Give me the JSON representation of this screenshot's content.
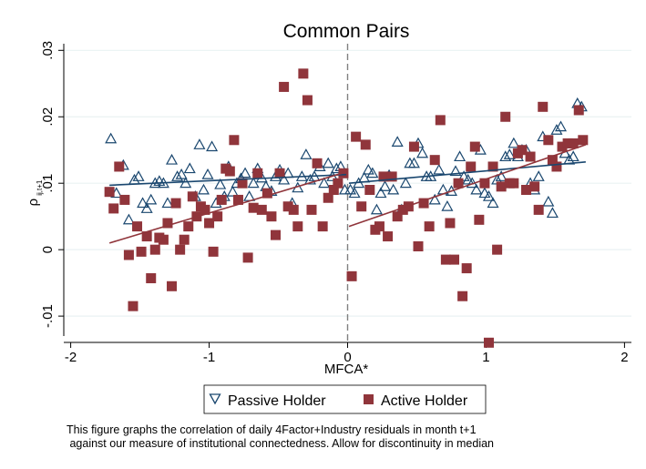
{
  "chart_data": {
    "type": "scatter",
    "title": "Common Pairs",
    "xlabel": "MFCA*",
    "ylabel_main": "ρ",
    "ylabel_sub": "ij,t+1",
    "xlim": [
      -2.05,
      2.05
    ],
    "ylim": [
      -0.013,
      0.031
    ],
    "xticks": [
      -2,
      -1,
      0,
      1,
      2
    ],
    "xtick_labels": [
      "-2",
      "-1",
      "0",
      "1",
      "2"
    ],
    "yticks": [
      -0.01,
      0,
      0.01,
      0.02,
      0.03
    ],
    "ytick_labels": [
      "-.01",
      "0",
      ".01",
      ".02",
      ".03"
    ],
    "grid": "horizontal",
    "discontinuity_at": 0,
    "legend_position": "bottom",
    "series": [
      {
        "name": "Passive Holder",
        "marker": "triangle",
        "color": "#1a476f",
        "points": [
          [
            -1.71,
            0.0167
          ],
          [
            -1.67,
            0.0085
          ],
          [
            -1.62,
            0.0127
          ],
          [
            -1.58,
            0.0045
          ],
          [
            -1.54,
            0.0105
          ],
          [
            -1.51,
            0.011
          ],
          [
            -1.48,
            0.007
          ],
          [
            -1.45,
            0.0062
          ],
          [
            -1.42,
            0.0075
          ],
          [
            -1.39,
            0.01
          ],
          [
            -1.36,
            0.0103
          ],
          [
            -1.33,
            0.01
          ],
          [
            -1.3,
            0.007
          ],
          [
            -1.27,
            0.0135
          ],
          [
            -1.23,
            0.011
          ],
          [
            -1.2,
            0.0113
          ],
          [
            -1.17,
            0.01
          ],
          [
            -1.14,
            0.0122
          ],
          [
            -1.1,
            0.008
          ],
          [
            -1.07,
            0.0158
          ],
          [
            -1.04,
            0.009
          ],
          [
            -1.01,
            0.0113
          ],
          [
            -0.98,
            0.0155
          ],
          [
            -0.95,
            0.007
          ],
          [
            -0.92,
            0.0098
          ],
          [
            -0.89,
            0.008
          ],
          [
            -0.86,
            0.0125
          ],
          [
            -0.83,
            0.0087
          ],
          [
            -0.8,
            0.01
          ],
          [
            -0.77,
            0.0107
          ],
          [
            -0.74,
            0.0115
          ],
          [
            -0.71,
            0.008
          ],
          [
            -0.68,
            0.01
          ],
          [
            -0.65,
            0.0122
          ],
          [
            -0.62,
            0.0108
          ],
          [
            -0.59,
            0.0095
          ],
          [
            -0.55,
            0.0088
          ],
          [
            -0.52,
            0.011
          ],
          [
            -0.49,
            0.012
          ],
          [
            -0.46,
            0.0105
          ],
          [
            -0.43,
            0.0115
          ],
          [
            -0.4,
            0.007
          ],
          [
            -0.36,
            0.0093
          ],
          [
            -0.33,
            0.011
          ],
          [
            -0.3,
            0.0143
          ],
          [
            -0.27,
            0.0105
          ],
          [
            -0.24,
            0.011
          ],
          [
            -0.2,
            0.0125
          ],
          [
            -0.17,
            0.01
          ],
          [
            -0.14,
            0.013
          ],
          [
            -0.11,
            0.011
          ],
          [
            -0.08,
            0.0122
          ],
          [
            -0.05,
            0.0125
          ],
          [
            -0.02,
            0.009
          ],
          [
            0.02,
            0.009
          ],
          [
            0.05,
            0.0085
          ],
          [
            0.08,
            0.01
          ],
          [
            0.12,
            0.0108
          ],
          [
            0.15,
            0.012
          ],
          [
            0.18,
            0.0115
          ],
          [
            0.21,
            0.006
          ],
          [
            0.24,
            0.0085
          ],
          [
            0.27,
            0.0095
          ],
          [
            0.3,
            0.0112
          ],
          [
            0.33,
            0.009
          ],
          [
            0.36,
            0.0162
          ],
          [
            0.39,
            0.006
          ],
          [
            0.42,
            0.01
          ],
          [
            0.45,
            0.013
          ],
          [
            0.48,
            0.013
          ],
          [
            0.51,
            0.016
          ],
          [
            0.54,
            0.0145
          ],
          [
            0.57,
            0.011
          ],
          [
            0.6,
            0.011
          ],
          [
            0.63,
            0.0075
          ],
          [
            0.66,
            0.012
          ],
          [
            0.69,
            0.009
          ],
          [
            0.72,
            0.0065
          ],
          [
            0.75,
            0.0088
          ],
          [
            0.78,
            0.0118
          ],
          [
            0.81,
            0.014
          ],
          [
            0.84,
            0.011
          ],
          [
            0.87,
            0.0105
          ],
          [
            0.9,
            0.01
          ],
          [
            0.93,
            0.009
          ],
          [
            0.96,
            0.015
          ],
          [
            0.99,
            0.0085
          ],
          [
            1.02,
            0.008
          ],
          [
            1.05,
            0.007
          ],
          [
            1.08,
            0.0105
          ],
          [
            1.11,
            0.011
          ],
          [
            1.14,
            0.014
          ],
          [
            1.17,
            0.0143
          ],
          [
            1.2,
            0.016
          ],
          [
            1.23,
            0.014
          ],
          [
            1.26,
            0.015
          ],
          [
            1.29,
            0.015
          ],
          [
            1.32,
            0.01
          ],
          [
            1.35,
            0.009
          ],
          [
            1.38,
            0.011
          ],
          [
            1.41,
            0.017
          ],
          [
            1.45,
            0.0072
          ],
          [
            1.48,
            0.0055
          ],
          [
            1.51,
            0.018
          ],
          [
            1.54,
            0.0185
          ],
          [
            1.57,
            0.0145
          ],
          [
            1.6,
            0.0135
          ],
          [
            1.63,
            0.014
          ],
          [
            1.66,
            0.022
          ],
          [
            1.69,
            0.0215
          ]
        ],
        "fits": [
          {
            "x": [
              -1.72,
              -0.01
            ],
            "y": [
              0.0097,
              0.0113
            ]
          },
          {
            "x": [
              0.01,
              1.72
            ],
            "y": [
              0.01,
              0.0132
            ]
          }
        ]
      },
      {
        "name": "Active Holder",
        "marker": "square",
        "color": "#90353b",
        "points": [
          [
            -1.72,
            0.0087
          ],
          [
            -1.69,
            0.0062
          ],
          [
            -1.65,
            0.0125
          ],
          [
            -1.61,
            0.0075
          ],
          [
            -1.58,
            -0.0008
          ],
          [
            -1.55,
            -0.0085
          ],
          [
            -1.52,
            0.0035
          ],
          [
            -1.49,
            -0.0003
          ],
          [
            -1.45,
            0.002
          ],
          [
            -1.42,
            -0.0043
          ],
          [
            -1.39,
            0.0
          ],
          [
            -1.36,
            0.0018
          ],
          [
            -1.33,
            0.0015
          ],
          [
            -1.3,
            0.004
          ],
          [
            -1.27,
            -0.0055
          ],
          [
            -1.24,
            0.007
          ],
          [
            -1.21,
            0.0
          ],
          [
            -1.18,
            0.0015
          ],
          [
            -1.15,
            0.0035
          ],
          [
            -1.12,
            0.008
          ],
          [
            -1.09,
            0.005
          ],
          [
            -1.06,
            0.0065
          ],
          [
            -1.03,
            0.006
          ],
          [
            -1.0,
            0.004
          ],
          [
            -0.97,
            -0.0003
          ],
          [
            -0.94,
            0.005
          ],
          [
            -0.91,
            0.0075
          ],
          [
            -0.88,
            0.0122
          ],
          [
            -0.85,
            0.0118
          ],
          [
            -0.82,
            0.0165
          ],
          [
            -0.79,
            0.0075
          ],
          [
            -0.76,
            0.01
          ],
          [
            -0.72,
            -0.0012
          ],
          [
            -0.68,
            0.0063
          ],
          [
            -0.65,
            0.0115
          ],
          [
            -0.62,
            0.006
          ],
          [
            -0.58,
            0.0085
          ],
          [
            -0.55,
            0.005
          ],
          [
            -0.52,
            0.0022
          ],
          [
            -0.49,
            0.0115
          ],
          [
            -0.46,
            0.0245
          ],
          [
            -0.43,
            0.0065
          ],
          [
            -0.39,
            0.006
          ],
          [
            -0.36,
            0.0035
          ],
          [
            -0.32,
            0.0265
          ],
          [
            -0.29,
            0.0225
          ],
          [
            -0.26,
            0.006
          ],
          [
            -0.22,
            0.013
          ],
          [
            -0.18,
            0.0035
          ],
          [
            -0.14,
            0.0078
          ],
          [
            -0.1,
            0.009
          ],
          [
            -0.07,
            0.01
          ],
          [
            -0.03,
            0.0115
          ],
          [
            0.03,
            -0.004
          ],
          [
            0.06,
            0.017
          ],
          [
            0.1,
            0.0065
          ],
          [
            0.13,
            0.0158
          ],
          [
            0.16,
            0.009
          ],
          [
            0.2,
            0.003
          ],
          [
            0.23,
            0.0035
          ],
          [
            0.26,
            0.011
          ],
          [
            0.29,
            0.002
          ],
          [
            0.32,
            0.011
          ],
          [
            0.36,
            0.005
          ],
          [
            0.4,
            0.006
          ],
          [
            0.44,
            0.0065
          ],
          [
            0.48,
            0.0155
          ],
          [
            0.51,
            0.0005
          ],
          [
            0.55,
            0.007
          ],
          [
            0.59,
            0.0035
          ],
          [
            0.63,
            0.0135
          ],
          [
            0.67,
            0.0195
          ],
          [
            0.71,
            -0.0015
          ],
          [
            0.74,
            0.004
          ],
          [
            0.77,
            -0.0015
          ],
          [
            0.8,
            0.01
          ],
          [
            0.83,
            -0.007
          ],
          [
            0.86,
            -0.0028
          ],
          [
            0.89,
            0.0125
          ],
          [
            0.92,
            0.0155
          ],
          [
            0.95,
            0.0045
          ],
          [
            0.99,
            0.01
          ],
          [
            1.02,
            -0.014
          ],
          [
            1.05,
            0.0125
          ],
          [
            1.08,
            0.0
          ],
          [
            1.11,
            0.0095
          ],
          [
            1.14,
            0.02
          ],
          [
            1.17,
            0.01
          ],
          [
            1.2,
            0.01
          ],
          [
            1.23,
            0.0145
          ],
          [
            1.26,
            0.015
          ],
          [
            1.29,
            0.009
          ],
          [
            1.32,
            0.014
          ],
          [
            1.35,
            0.0095
          ],
          [
            1.38,
            0.006
          ],
          [
            1.41,
            0.0215
          ],
          [
            1.45,
            0.0165
          ],
          [
            1.48,
            0.0135
          ],
          [
            1.51,
            0.0125
          ],
          [
            1.55,
            0.0155
          ],
          [
            1.59,
            0.016
          ],
          [
            1.63,
            0.016
          ],
          [
            1.67,
            0.021
          ],
          [
            1.7,
            0.0165
          ]
        ],
        "fits": [
          {
            "x": [
              -1.72,
              -0.01
            ],
            "y": [
              0.001,
              0.0117
            ]
          },
          {
            "x": [
              0.01,
              1.72
            ],
            "y": [
              0.0035,
              0.0158
            ]
          }
        ]
      }
    ]
  },
  "note_lines": [
    "This figure graphs the correlation of daily 4Factor+Industry residuals in month t+1",
    " against our measure of institutional connectedness. Allow for discontinuity in median"
  ]
}
